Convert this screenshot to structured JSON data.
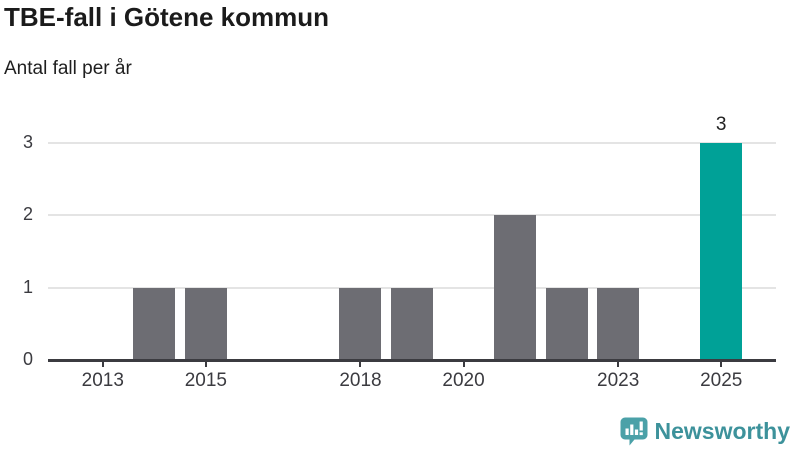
{
  "header": {
    "title": "TBE-fall i Götene kommun",
    "subtitle": "Antal fall per år"
  },
  "chart_data": {
    "type": "bar",
    "title": "TBE-fall i Götene kommun",
    "subtitle": "Antal fall per år",
    "xlabel": "",
    "ylabel": "Antal fall per år",
    "x": [
      2013,
      2014,
      2015,
      2016,
      2017,
      2018,
      2019,
      2020,
      2021,
      2022,
      2023,
      2024,
      2025
    ],
    "values": [
      0,
      1,
      1,
      0,
      0,
      1,
      1,
      0,
      2,
      1,
      1,
      0,
      3
    ],
    "ylim": [
      0,
      3
    ],
    "y_ticks": [
      0,
      1,
      2,
      3
    ],
    "x_tick_labels": [
      "2013",
      "2015",
      "2018",
      "2020",
      "2023",
      "2025"
    ],
    "grid": "horizontal",
    "legend": "none",
    "bar_color": "#6d6d73",
    "highlight": {
      "x": 2025,
      "color": "#00a197",
      "label": "3"
    },
    "colors": {
      "axis": "#3b3b40",
      "gridline": "#e4e4e4",
      "tick_text": "#3b3b40",
      "annotation_text": "#222222"
    }
  },
  "footer": {
    "brand": "Newsworthy",
    "brand_color": "#3d929b",
    "icon_color": "#4ba1a8"
  }
}
